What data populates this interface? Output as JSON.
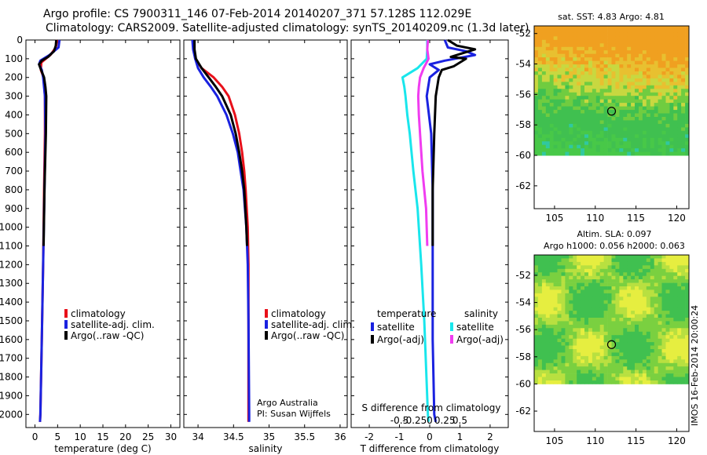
{
  "title_line1": "Argo profile: CS 7900311_146 07-Feb-2014 20140207_371 57.128S 112.029E",
  "title_line2": "Climatology: CARS2009. Satellite-adjusted climatology: synTS_20140209.nc (1.3d later)",
  "colors": {
    "climatology": "#e8101a",
    "satellite": "#1a22e0",
    "argo": "#000000",
    "sat_salinity": "#19e6ec",
    "argo_salinity": "#f03cf0"
  },
  "credit": {
    "line1": "Argo Australia",
    "line2": "PI: Susan Wijffels"
  },
  "imos_stamp": "IMOS 16-Feb-2014 20:00:24",
  "chart_data": [
    {
      "type": "line",
      "xlabel": "temperature (deg C)",
      "ylabel": "",
      "xlim": [
        -2,
        32
      ],
      "ylim": [
        2070,
        0
      ],
      "xticks": [
        0,
        5,
        10,
        15,
        20,
        25,
        30
      ],
      "xtick_labels": [
        "0",
        "5",
        "10",
        "15",
        "20",
        "25",
        "30"
      ],
      "yticks": [
        0,
        100,
        200,
        300,
        400,
        500,
        600,
        700,
        800,
        900,
        1000,
        1100,
        1200,
        1300,
        1400,
        1500,
        1600,
        1700,
        1800,
        1900,
        2000
      ],
      "legend": [
        "climatology",
        "satellite-adj. clim.",
        "Argo(..raw -QC)"
      ],
      "legend_placement": "lower-middle",
      "series": [
        {
          "name": "climatology",
          "color": "#e8101a",
          "depth": [
            0,
            40,
            80,
            120,
            160,
            200,
            300,
            500,
            800,
            1200,
            1600,
            2000,
            2040
          ],
          "values": [
            4.9,
            4.6,
            3.4,
            1.4,
            1.3,
            1.9,
            2.2,
            2.2,
            2.0,
            1.8,
            1.5,
            1.2,
            1.1
          ]
        },
        {
          "name": "satellite-adj. clim.",
          "color": "#1a22e0",
          "depth": [
            0,
            40,
            80,
            110,
            130,
            160,
            200,
            300,
            500,
            800,
            1200,
            1600,
            2000,
            2040
          ],
          "values": [
            5.4,
            5.2,
            3.2,
            1.2,
            0.9,
            1.5,
            1.8,
            2.2,
            2.3,
            2.1,
            1.8,
            1.5,
            1.2,
            1.1
          ]
        },
        {
          "name": "Argo(..raw -QC)",
          "color": "#000000",
          "depth": [
            0,
            30,
            60,
            90,
            110,
            130,
            150,
            180,
            200,
            250,
            300,
            500,
            800,
            1100
          ],
          "values": [
            4.7,
            4.6,
            4.2,
            2.9,
            1.5,
            0.9,
            1.2,
            1.7,
            2.0,
            2.3,
            2.5,
            2.4,
            2.1,
            1.9
          ]
        }
      ]
    },
    {
      "type": "line",
      "xlabel": "salinity",
      "ylabel": "",
      "xlim": [
        33.8,
        36.1
      ],
      "ylim": [
        2070,
        0
      ],
      "xticks": [
        34,
        34.5,
        35,
        35.5,
        36
      ],
      "xtick_labels": [
        "34",
        "34.5",
        "35",
        "35.5",
        "36"
      ],
      "legend": [
        "climatology",
        "satellite-adj. clim.",
        "Argo(..raw -QC)"
      ],
      "legend_placement": "lower-right",
      "series": [
        {
          "name": "climatology",
          "color": "#e8101a",
          "depth": [
            0,
            50,
            100,
            150,
            200,
            250,
            300,
            400,
            500,
            600,
            700,
            800,
            1000,
            1200,
            1500,
            2000,
            2040
          ],
          "values": [
            33.94,
            33.94,
            33.96,
            34.05,
            34.22,
            34.34,
            34.43,
            34.52,
            34.58,
            34.62,
            34.65,
            34.67,
            34.7,
            34.71,
            34.71,
            34.71,
            34.71
          ]
        },
        {
          "name": "satellite-adj. clim.",
          "color": "#1a22e0",
          "depth": [
            0,
            50,
            100,
            150,
            200,
            250,
            300,
            400,
            500,
            600,
            700,
            800,
            1000,
            1200,
            1500,
            2000,
            2040
          ],
          "values": [
            33.92,
            33.93,
            33.96,
            34.0,
            34.08,
            34.18,
            34.27,
            34.4,
            34.49,
            34.56,
            34.6,
            34.64,
            34.68,
            34.7,
            34.71,
            34.72,
            34.72
          ]
        },
        {
          "name": "Argo(..raw -QC)",
          "color": "#000000",
          "depth": [
            0,
            50,
            100,
            150,
            200,
            250,
            300,
            400,
            500,
            600,
            700,
            800,
            1000,
            1100
          ],
          "values": [
            33.95,
            33.95,
            33.97,
            34.05,
            34.15,
            34.25,
            34.34,
            34.46,
            34.53,
            34.58,
            34.62,
            34.65,
            34.68,
            34.69
          ]
        }
      ]
    },
    {
      "type": "line",
      "xlabel": "T difference from climatology",
      "xlabel_top": "S difference from climatology",
      "ylabel": "",
      "xlim": [
        -2.6,
        2.6
      ],
      "ylim": [
        2070,
        0
      ],
      "xticks": [
        -2,
        -1,
        0,
        1,
        2
      ],
      "xtick_labels": [
        "-2",
        "-1",
        "0",
        "1",
        "2"
      ],
      "sticks": [
        -0.5,
        -0.25,
        0,
        0.25,
        0.5
      ],
      "stick_labels": [
        "-0.5",
        "-0.25",
        "0",
        "0.25",
        "0.5"
      ],
      "legend_groups": [
        {
          "heading": "temperature",
          "items": [
            "satellite",
            "Argo(-adj)"
          ]
        },
        {
          "heading": "salinity",
          "items": [
            "satellite",
            "Argo(-adj)"
          ]
        }
      ],
      "series": [
        {
          "name": "temperature satellite",
          "color": "#1a22e0",
          "depth": [
            0,
            40,
            60,
            80,
            110,
            130,
            160,
            200,
            300,
            500,
            800,
            1200,
            1600,
            2000,
            2040
          ],
          "values": [
            0.5,
            0.6,
            1.2,
            1.5,
            0.5,
            0.0,
            0.3,
            0.0,
            -0.1,
            0.05,
            0.1,
            0.1,
            0.1,
            0.15,
            0.2
          ]
        },
        {
          "name": "temperature Argo(-adj)",
          "color": "#000000",
          "depth": [
            0,
            30,
            50,
            70,
            90,
            100,
            120,
            140,
            160,
            200,
            300,
            500,
            800,
            1100
          ],
          "values": [
            0.6,
            0.9,
            1.5,
            1.1,
            0.7,
            1.2,
            1.0,
            0.8,
            0.4,
            0.3,
            0.2,
            0.15,
            0.1,
            0.1
          ]
        },
        {
          "name": "salinity satellite",
          "color": "#19e6ec",
          "depth": [
            0,
            50,
            100,
            150,
            200,
            250,
            300,
            400,
            500,
            700,
            900,
            1200,
            1500,
            2000,
            2040
          ],
          "values": [
            -0.04,
            -0.04,
            -0.05,
            -0.2,
            -0.45,
            -0.42,
            -0.4,
            -0.37,
            -0.33,
            -0.27,
            -0.2,
            -0.14,
            -0.09,
            -0.03,
            -0.02
          ]
        },
        {
          "name": "salinity Argo(-adj)",
          "color": "#f03cf0",
          "depth": [
            0,
            50,
            100,
            150,
            200,
            250,
            300,
            400,
            500,
            700,
            900,
            1100
          ],
          "values": [
            -0.03,
            -0.04,
            -0.02,
            -0.1,
            -0.16,
            -0.18,
            -0.19,
            -0.18,
            -0.16,
            -0.12,
            -0.06,
            -0.04
          ]
        }
      ]
    },
    {
      "type": "heatmap",
      "title": "sat. SST: 4.83  Argo: 4.81",
      "xlim": [
        102.5,
        121.5
      ],
      "ylim": [
        -63.5,
        -51.5
      ],
      "xticks": [
        105,
        110,
        115,
        120
      ],
      "yticks": [
        -52,
        -54,
        -56,
        -58,
        -60,
        -62
      ],
      "data_extent_lat": [
        -60,
        -51.5
      ],
      "marker": {
        "lon": 112.0,
        "lat": -57.1
      }
    },
    {
      "type": "heatmap",
      "title_line1": "Altim. SLA: 0.097",
      "title_line2": "Argo h1000: 0.056 h2000: 0.063",
      "xlim": [
        102.5,
        121.5
      ],
      "ylim": [
        -63.5,
        -50.5
      ],
      "xticks": [
        105,
        110,
        115,
        120
      ],
      "yticks": [
        -52,
        -54,
        -56,
        -58,
        -60,
        -62
      ],
      "data_extent_lat": [
        -60,
        -50.5
      ],
      "marker": {
        "lon": 112.0,
        "lat": -57.1
      }
    }
  ]
}
